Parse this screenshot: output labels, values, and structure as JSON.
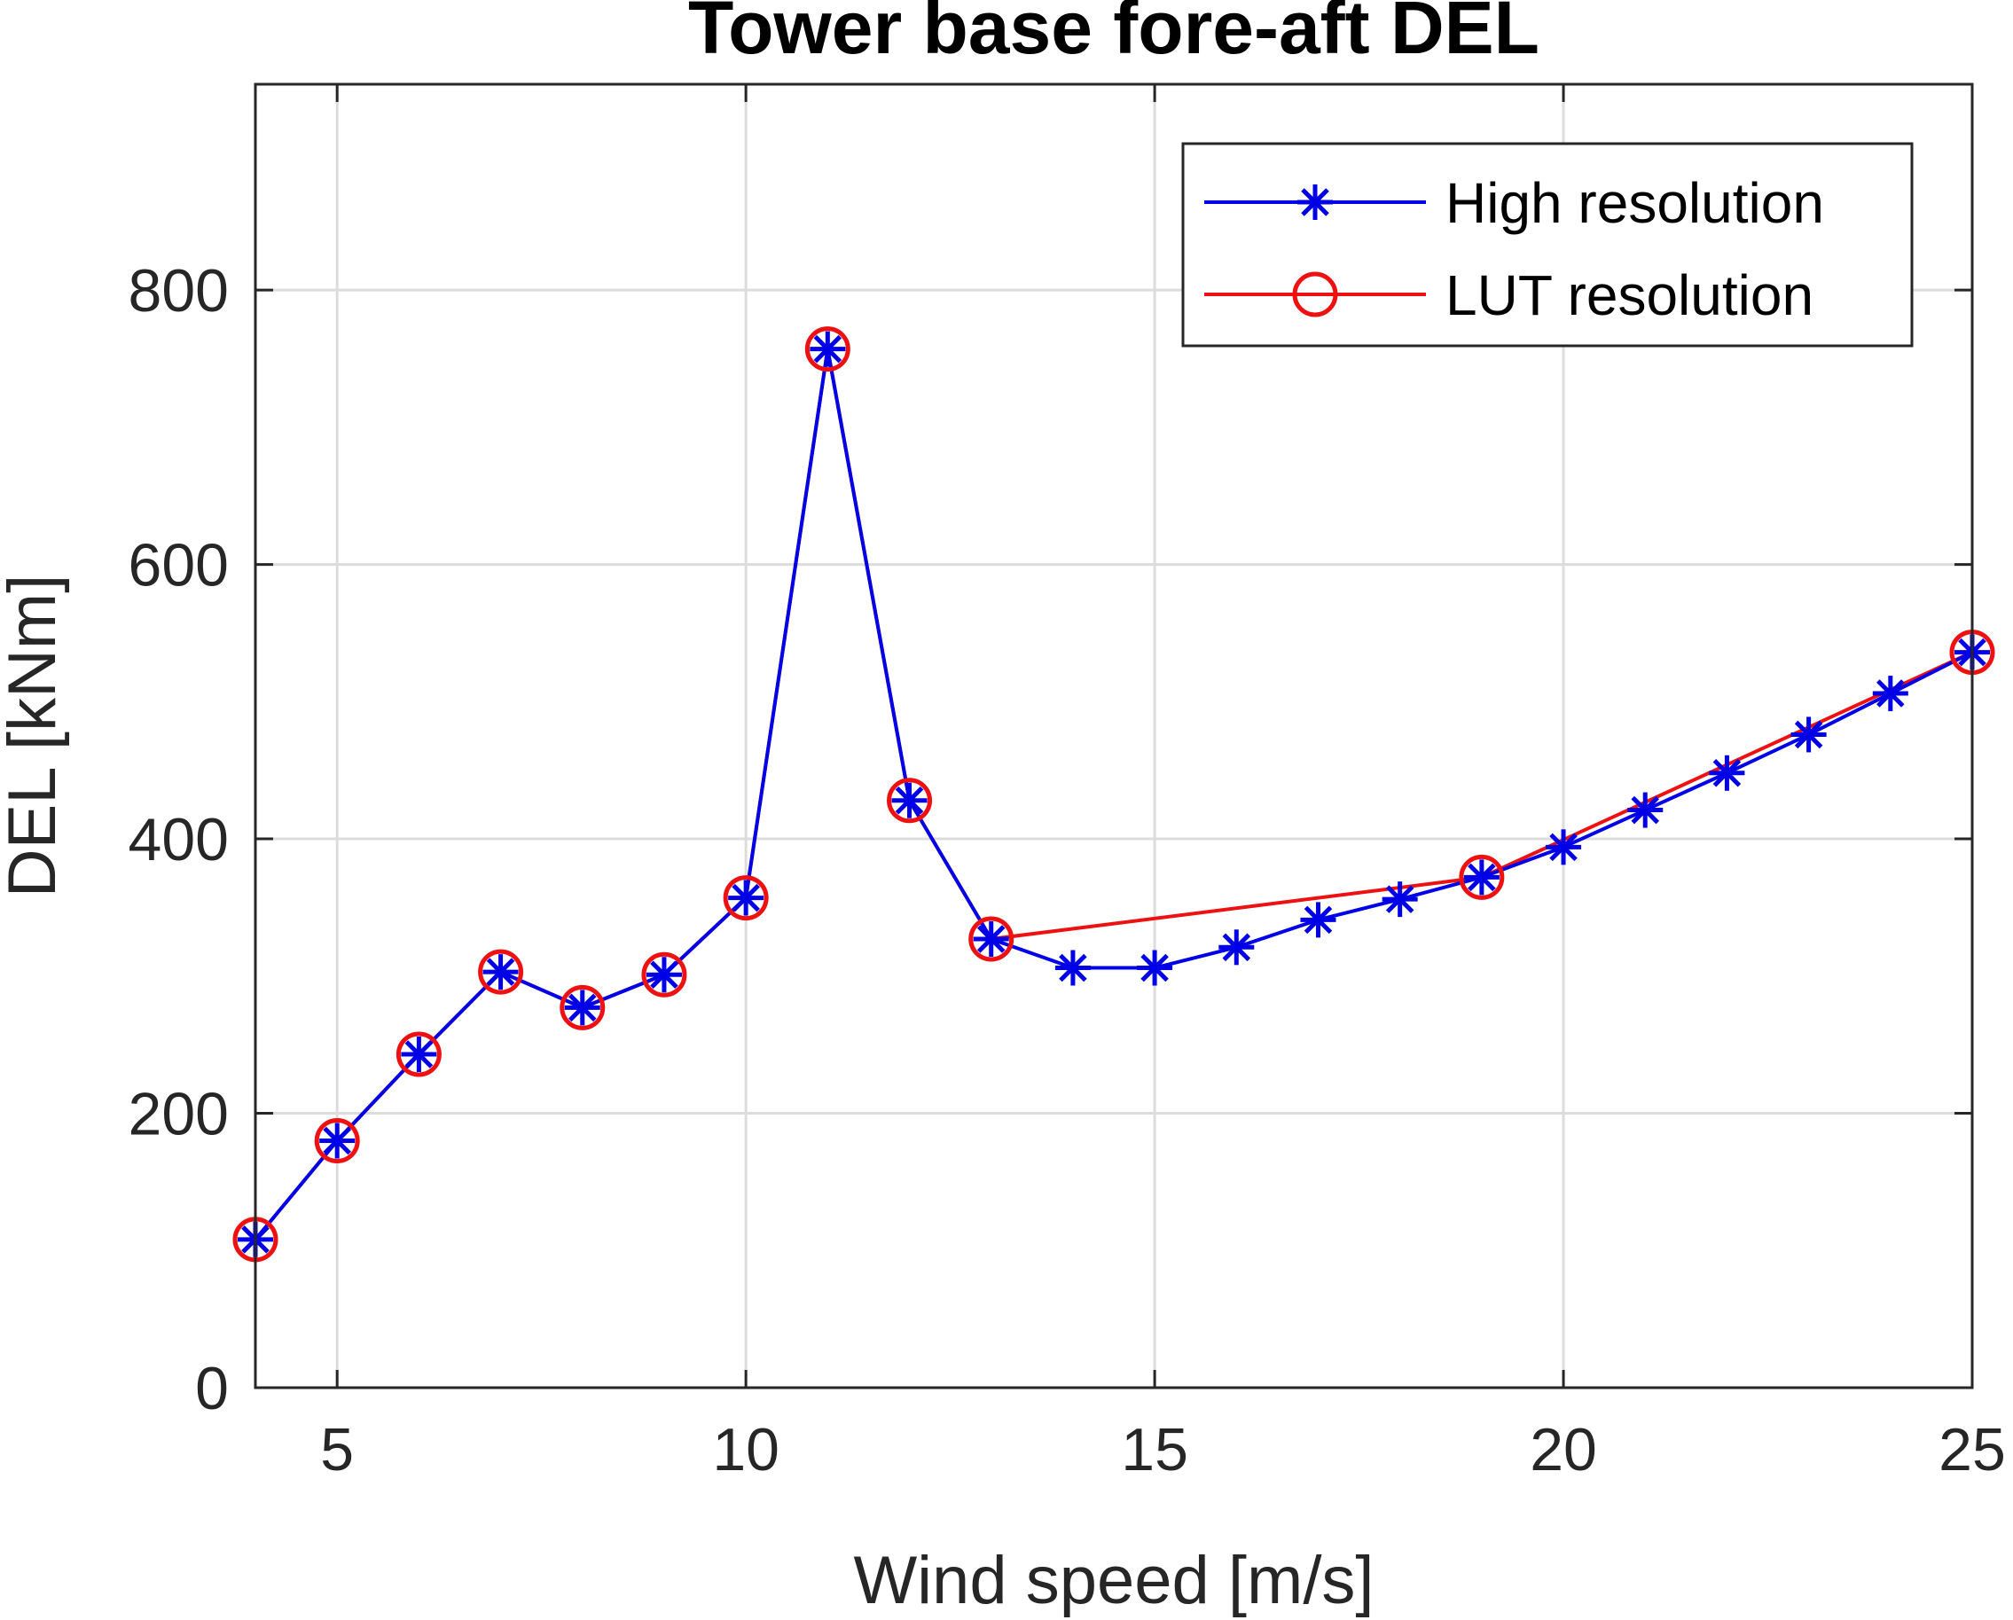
{
  "chart_data": {
    "type": "line",
    "title": "Tower base fore-aft DEL",
    "xlabel": "Wind speed [m/s]",
    "ylabel": "DEL [kNm]",
    "xlim": [
      4,
      25
    ],
    "ylim": [
      0,
      950
    ],
    "xticks": [
      5,
      10,
      15,
      20,
      25
    ],
    "yticks": [
      0,
      200,
      400,
      600,
      800
    ],
    "grid": true,
    "legend_position": "top-right",
    "series": [
      {
        "name": "High resolution",
        "color": "#0000e6",
        "marker": "asterisk",
        "x": [
          4,
          5,
          6,
          7,
          8,
          9,
          10,
          11,
          12,
          13,
          14,
          15,
          16,
          17,
          18,
          19,
          20,
          21,
          22,
          23,
          24,
          25
        ],
        "y": [
          108,
          180,
          243,
          303,
          277,
          301,
          357,
          757,
          428,
          327,
          306,
          306,
          321,
          341,
          356,
          372,
          394,
          421,
          448,
          476,
          506,
          536
        ]
      },
      {
        "name": "LUT resolution",
        "color": "#ee1111",
        "marker": "circle",
        "x": [
          4,
          5,
          6,
          7,
          8,
          9,
          10,
          11,
          12,
          13,
          19,
          25
        ],
        "y": [
          108,
          180,
          243,
          303,
          277,
          301,
          357,
          757,
          428,
          327,
          372,
          536
        ]
      }
    ]
  }
}
